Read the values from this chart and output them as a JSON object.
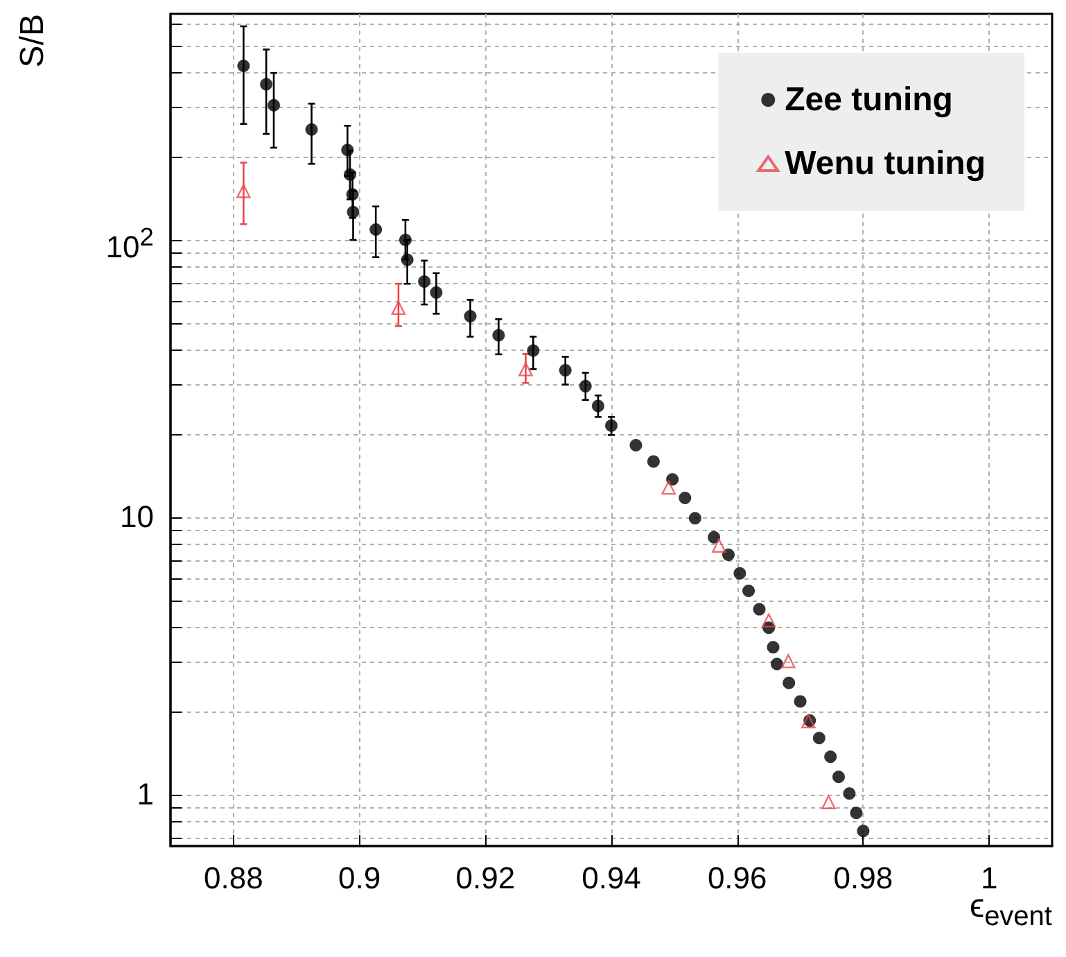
{
  "chart_data": {
    "type": "scatter",
    "xlabel": "ϵ$_{event}$",
    "ylabel": "S/B",
    "xlim": [
      0.87,
      1.01
    ],
    "xticks": [
      0.88,
      0.9,
      0.92,
      0.94,
      0.96,
      0.98,
      1
    ],
    "ylim": [
      0.653,
      653
    ],
    "log": "y",
    "yticks": [
      {
        "value": 0.7,
        "label": null
      },
      {
        "value": 0.8,
        "label": null
      },
      {
        "value": 0.9,
        "label": null
      },
      1,
      {
        "value": 2,
        "label": null
      },
      {
        "value": 3,
        "label": null
      },
      {
        "value": 4,
        "label": null
      },
      {
        "value": 5,
        "label": null
      },
      {
        "value": 6,
        "label": null
      },
      {
        "value": 7,
        "label": null
      },
      {
        "value": 8,
        "label": null
      },
      {
        "value": 9,
        "label": null
      },
      10,
      {
        "value": 20,
        "label": null
      },
      {
        "value": 30,
        "label": null
      },
      {
        "value": 40,
        "label": null
      },
      {
        "value": 50,
        "label": null
      },
      {
        "value": 60,
        "label": null
      },
      {
        "value": 70,
        "label": null
      },
      {
        "value": 80,
        "label": null
      },
      {
        "value": 90,
        "label": null
      },
      {
        "value": 100,
        "label": "10$^{2}$"
      },
      {
        "value": 200,
        "label": null
      },
      {
        "value": 300,
        "label": null
      },
      {
        "value": 400,
        "label": null
      },
      {
        "value": 500,
        "label": null
      },
      {
        "value": 600,
        "label": null
      }
    ],
    "grid": true,
    "legend": "top right",
    "series": [
      {
        "name": "Zee tuning",
        "color": "#000000",
        "marker": "circle",
        "x": [
          0.8816,
          0.8852,
          0.8864,
          0.8924,
          0.8981,
          0.8985,
          0.8989,
          0.899,
          0.9026,
          0.9073,
          0.9076,
          0.9103,
          0.9122,
          0.9176,
          0.9221,
          0.9276,
          0.9327,
          0.9359,
          0.9379,
          0.94,
          0.9439,
          0.9467,
          0.9497,
          0.9517,
          0.9533,
          0.9563,
          0.9586,
          0.9604,
          0.9618,
          0.9635,
          0.965,
          0.9657,
          0.9663,
          0.9682,
          0.97,
          0.9715,
          0.973,
          0.9748,
          0.9761,
          0.9778,
          0.9789,
          0.98
        ],
        "values": [
          424,
          364,
          306,
          250,
          211,
          172,
          146,
          126,
          109,
          100,
          84.8,
          70.8,
          64.6,
          53.1,
          45.3,
          39.9,
          33.9,
          29.7,
          25.2,
          21.4,
          18.2,
          15.9,
          13.7,
          11.75,
          9.92,
          8.47,
          7.33,
          6.28,
          5.43,
          4.66,
          4.0,
          3.4,
          2.96,
          2.53,
          2.17,
          1.85,
          1.6,
          1.37,
          1.16,
          1.01,
          0.86,
          0.74
        ],
        "errors": [
          [
            262,
            589
          ],
          [
            241,
            486
          ],
          [
            215,
            400
          ],
          [
            188,
            310
          ],
          [
            170,
            258
          ],
          [
            140,
            210
          ],
          [
            120,
            175
          ],
          [
            100,
            150
          ],
          [
            86.7,
            132
          ],
          [
            85,
            118
          ],
          [
            69.5,
            100
          ],
          [
            58.5,
            84.2
          ],
          [
            54.2,
            75.9
          ],
          [
            44.8,
            60.8
          ],
          [
            38.7,
            51.8
          ],
          [
            34.2,
            44.8
          ],
          [
            30.1,
            37.9
          ],
          [
            26.5,
            33.2
          ],
          [
            23,
            27.5
          ],
          [
            19.8,
            23
          ],
          null,
          null,
          null,
          null,
          null,
          null,
          null,
          null,
          null,
          null,
          null,
          null,
          null,
          null,
          null,
          null,
          null,
          null,
          null,
          null,
          null,
          null
        ]
      },
      {
        "name": "Wenu tuning",
        "color": "#e8474c",
        "marker": "triangle",
        "x": [
          0.8816,
          0.9062,
          0.9264,
          0.9491,
          0.9571,
          0.965,
          0.9681,
          0.9713,
          0.9745
        ],
        "values": [
          150,
          56.9,
          34.2,
          12.8,
          7.91,
          4.25,
          3.03,
          1.84,
          0.94
        ],
        "errors": [
          [
            114,
            190
          ],
          [
            48.9,
            69.5
          ],
          [
            30.5,
            38.8
          ],
          null,
          null,
          null,
          null,
          null,
          null
        ]
      }
    ]
  }
}
